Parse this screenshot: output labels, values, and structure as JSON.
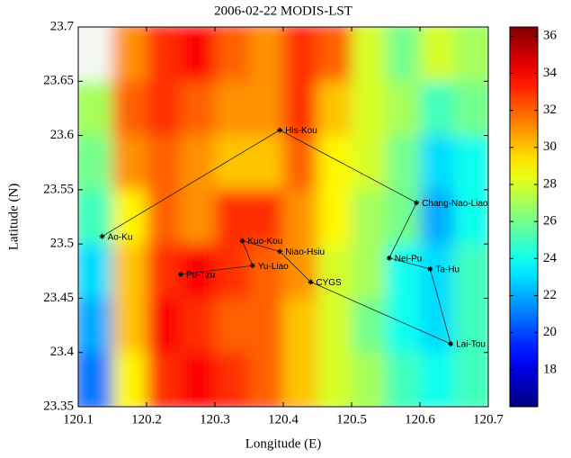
{
  "chart_data": {
    "type": "field_map",
    "title": "2006-02-22 MODIS-LST",
    "x_label": "Longitude (E)",
    "y_label": "Latitude (N)",
    "xlim": [
      120.1,
      120.7
    ],
    "ylim": [
      23.35,
      23.7
    ],
    "xticks": [
      120.1,
      120.2,
      120.3,
      120.4,
      120.5,
      120.6,
      120.7
    ],
    "yticks": [
      23.35,
      23.4,
      23.45,
      23.5,
      23.55,
      23.6,
      23.65,
      23.7
    ],
    "colormap": "jet",
    "clim": [
      16,
      36.5
    ],
    "colorbar_ticks": [
      18,
      20,
      22,
      24,
      26,
      28,
      30,
      32,
      34,
      36
    ],
    "field": {
      "lon_edges": [
        120.1,
        120.15,
        120.2,
        120.25,
        120.3,
        120.35,
        120.4,
        120.45,
        120.5,
        120.55,
        120.6,
        120.65,
        120.7
      ],
      "lat_edges": [
        23.7,
        23.65,
        23.6,
        23.55,
        23.5,
        23.45,
        23.4,
        23.35
      ],
      "values": [
        [
          null,
          31,
          33,
          34,
          32,
          31,
          33,
          32,
          28,
          26,
          28,
          27
        ],
        [
          27,
          32,
          33,
          32,
          31,
          31,
          33,
          30,
          28,
          27,
          25,
          26
        ],
        [
          26,
          31,
          32,
          31,
          30,
          30,
          32,
          29,
          28,
          26,
          23,
          24
        ],
        [
          25,
          29,
          32,
          31,
          33,
          33,
          31,
          29,
          27,
          26,
          22,
          24
        ],
        [
          23,
          30,
          33,
          34,
          33,
          32,
          31,
          28,
          27,
          24,
          23,
          25
        ],
        [
          22,
          30,
          34,
          33,
          32,
          32,
          30,
          28,
          26,
          24,
          23,
          25
        ],
        [
          21,
          29,
          33,
          34,
          33,
          32,
          30,
          28,
          27,
          25,
          24,
          25
        ]
      ]
    },
    "stations": {
      "names": [
        "Ao-Ku",
        "His-Kou",
        "Chang-Nao-Liao",
        "Nei-Pu",
        "Ta-Hu",
        "Lai-Tou",
        "CYGS",
        "Niao-Hsiu",
        "Kuo-Kou",
        "Yu-Liao",
        "Pu-Tzu"
      ],
      "x": [
        120.135,
        120.395,
        120.595,
        120.555,
        120.615,
        120.645,
        120.44,
        120.395,
        120.34,
        120.355,
        120.25
      ],
      "y": [
        23.507,
        23.605,
        23.538,
        23.487,
        23.477,
        23.408,
        23.465,
        23.493,
        23.503,
        23.48,
        23.472
      ]
    }
  }
}
